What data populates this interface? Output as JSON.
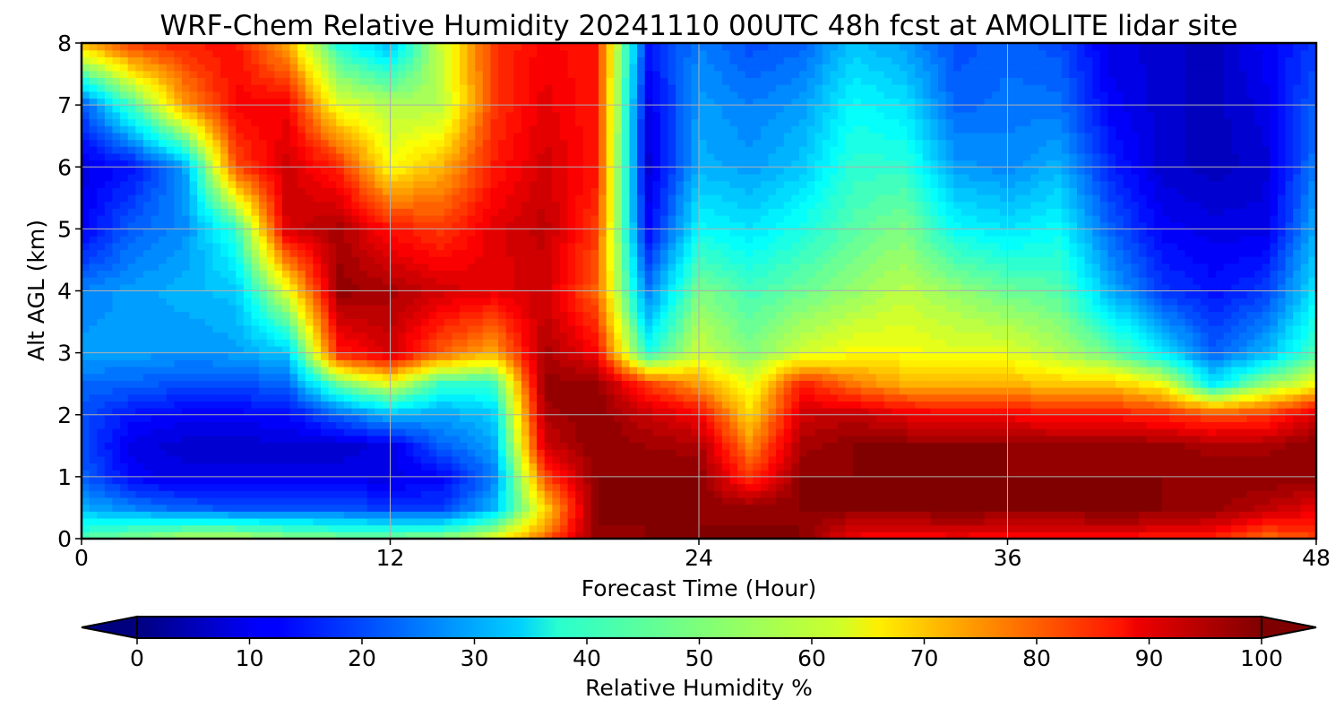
{
  "chart_data": {
    "type": "heatmap",
    "title": "WRF-Chem Relative Humidity 20241110 00UTC 48h fcst at AMOLITE lidar site",
    "xlabel": "Forecast Time (Hour)",
    "ylabel": "Alt AGL (km)",
    "x_ticks": [
      "0",
      "12",
      "24",
      "36",
      "48"
    ],
    "y_ticks": [
      "0",
      "1",
      "2",
      "3",
      "4",
      "5",
      "6",
      "7",
      "8"
    ],
    "xlim": [
      0,
      48
    ],
    "ylim": [
      0,
      8
    ],
    "grid": true,
    "colorbar": {
      "label": "Relative Humidity %",
      "ticks": [
        "0",
        "10",
        "20",
        "30",
        "40",
        "50",
        "60",
        "70",
        "80",
        "90",
        "100"
      ],
      "range": [
        0,
        100
      ],
      "extend": "both",
      "colormap": "jet"
    },
    "x_hours": [
      0,
      2,
      4,
      6,
      8,
      10,
      12,
      14,
      16,
      18,
      20,
      22,
      24,
      26,
      28,
      30,
      32,
      34,
      36,
      38,
      40,
      42,
      44,
      46,
      48
    ],
    "z_km": [
      0,
      0.25,
      0.5,
      1,
      1.5,
      2,
      2.5,
      3,
      4,
      5,
      6,
      7,
      8
    ],
    "rh_columns": [
      [
        46,
        38,
        30,
        22,
        20,
        20,
        23,
        28,
        25,
        12,
        10,
        20,
        70
      ],
      [
        50,
        40,
        25,
        12,
        10,
        14,
        22,
        28,
        28,
        22,
        14,
        45,
        82
      ],
      [
        55,
        40,
        22,
        10,
        8,
        12,
        20,
        27,
        30,
        26,
        28,
        72,
        85
      ],
      [
        55,
        40,
        20,
        10,
        8,
        12,
        20,
        28,
        32,
        42,
        80,
        88,
        86
      ],
      [
        52,
        38,
        20,
        10,
        8,
        13,
        22,
        32,
        60,
        92,
        92,
        88,
        70
      ],
      [
        50,
        36,
        20,
        10,
        8,
        22,
        48,
        85,
        98,
        96,
        84,
        60,
        40
      ],
      [
        50,
        34,
        18,
        10,
        10,
        30,
        60,
        92,
        96,
        86,
        62,
        55,
        30
      ],
      [
        52,
        34,
        18,
        12,
        22,
        28,
        42,
        78,
        92,
        82,
        70,
        55,
        58
      ],
      [
        60,
        45,
        30,
        24,
        28,
        32,
        42,
        70,
        90,
        90,
        85,
        82,
        82
      ],
      [
        78,
        70,
        66,
        80,
        92,
        96,
        98,
        96,
        92,
        94,
        92,
        90,
        88
      ],
      [
        98,
        99,
        99,
        99,
        99,
        99,
        98,
        88,
        78,
        82,
        86,
        85,
        85
      ],
      [
        99,
        99,
        99,
        99,
        97,
        93,
        82,
        40,
        24,
        12,
        8,
        10,
        15
      ],
      [
        99,
        99,
        99,
        99,
        96,
        88,
        72,
        58,
        50,
        38,
        30,
        28,
        25
      ],
      [
        99,
        99,
        98,
        82,
        74,
        66,
        60,
        50,
        44,
        35,
        28,
        25,
        20
      ],
      [
        99,
        99,
        99,
        99,
        96,
        92,
        85,
        58,
        48,
        40,
        32,
        28,
        22
      ],
      [
        88,
        94,
        99,
        99,
        99,
        94,
        76,
        62,
        52,
        46,
        42,
        38,
        32
      ],
      [
        85,
        94,
        99,
        99,
        99,
        90,
        70,
        62,
        56,
        50,
        42,
        35,
        28
      ],
      [
        88,
        95,
        99,
        99,
        99,
        88,
        70,
        60,
        52,
        38,
        28,
        22,
        20
      ],
      [
        85,
        94,
        99,
        99,
        99,
        88,
        70,
        60,
        48,
        35,
        26,
        24,
        22
      ],
      [
        86,
        94,
        99,
        99,
        98,
        86,
        68,
        55,
        46,
        38,
        30,
        24,
        20
      ],
      [
        86,
        95,
        99,
        99,
        98,
        86,
        68,
        48,
        30,
        22,
        16,
        12,
        10
      ],
      [
        84,
        94,
        99,
        99,
        98,
        84,
        62,
        36,
        18,
        12,
        8,
        8,
        8
      ],
      [
        84,
        92,
        98,
        99,
        96,
        80,
        36,
        22,
        14,
        10,
        6,
        6,
        6
      ],
      [
        76,
        86,
        94,
        99,
        96,
        82,
        52,
        30,
        18,
        10,
        8,
        10,
        12
      ],
      [
        80,
        86,
        90,
        99,
        99,
        92,
        62,
        45,
        36,
        30,
        25,
        22,
        18
      ]
    ]
  }
}
